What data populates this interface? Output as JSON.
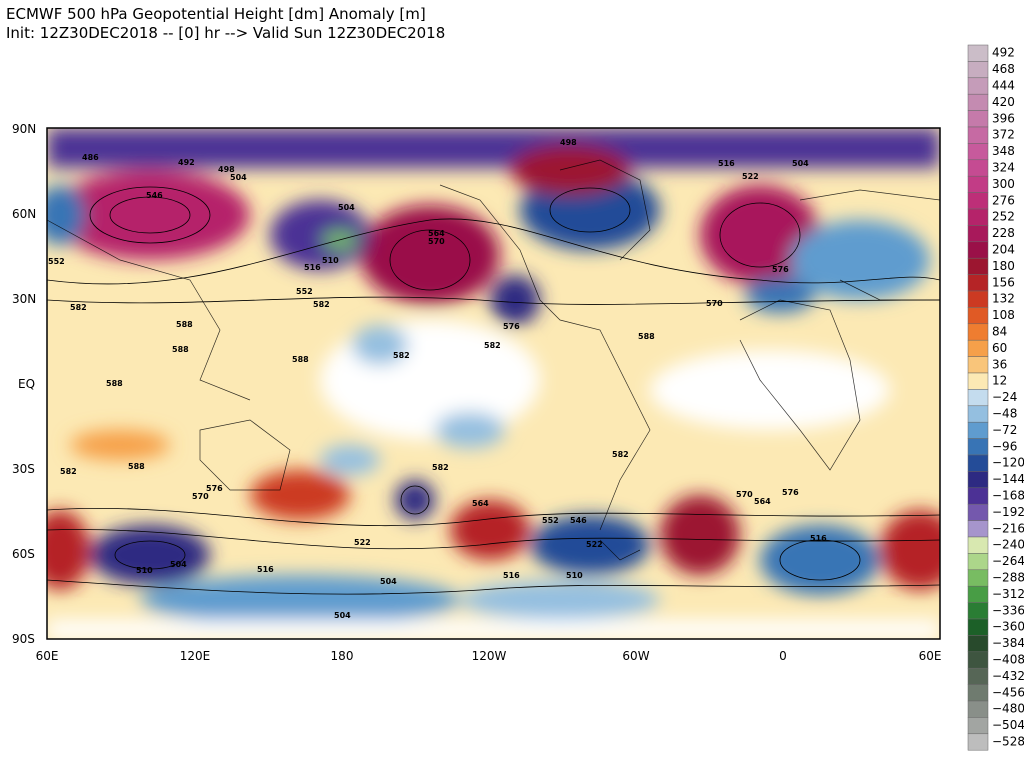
{
  "header": {
    "title": "ECMWF 500 hPa Geopotential Height [dm] Anomaly [m]",
    "subtitle": "Init: 12Z30DEC2018 -- [0] hr --> Valid Sun 12Z30DEC2018"
  },
  "map": {
    "lat_labels": [
      "90N",
      "60N",
      "30N",
      "EQ",
      "30S",
      "60S",
      "90S"
    ],
    "lon_labels": [
      "60E",
      "120E",
      "180",
      "120W",
      "60W",
      "0",
      "60E"
    ],
    "contour_labels": [
      "486",
      "492",
      "498",
      "504",
      "546",
      "504",
      "510",
      "516",
      "552",
      "582",
      "564",
      "570",
      "576",
      "498",
      "516",
      "504",
      "522",
      "570",
      "576",
      "582",
      "588",
      "588",
      "588",
      "588",
      "582",
      "582",
      "588",
      "588",
      "582",
      "570",
      "576",
      "582",
      "564",
      "552",
      "522",
      "504",
      "510",
      "516",
      "504",
      "510",
      "516",
      "504",
      "582",
      "576",
      "570",
      "564",
      "546",
      "522",
      "552",
      "516"
    ]
  },
  "colorbar": [
    {
      "label": "492",
      "color": "#cbbdc8"
    },
    {
      "label": "468",
      "color": "#c7adc0"
    },
    {
      "label": "444",
      "color": "#c59cb9"
    },
    {
      "label": "420",
      "color": "#c48bb1"
    },
    {
      "label": "396",
      "color": "#c57aaa"
    },
    {
      "label": "372",
      "color": "#c66aa3"
    },
    {
      "label": "348",
      "color": "#c75a9c"
    },
    {
      "label": "324",
      "color": "#c54b92"
    },
    {
      "label": "300",
      "color": "#c23c86"
    },
    {
      "label": "276",
      "color": "#bd2f78"
    },
    {
      "label": "252",
      "color": "#b5236a"
    },
    {
      "label": "228",
      "color": "#a8195b"
    },
    {
      "label": "204",
      "color": "#9a1048"
    },
    {
      "label": "180",
      "color": "#9c1630"
    },
    {
      "label": "156",
      "color": "#b52426"
    },
    {
      "label": "132",
      "color": "#cc3a22"
    },
    {
      "label": "108",
      "color": "#e05a25"
    },
    {
      "label": "84",
      "color": "#ef7d30"
    },
    {
      "label": "60",
      "color": "#f6a04a"
    },
    {
      "label": "36",
      "color": "#f9c57a"
    },
    {
      "label": "12",
      "color": "#fce9b4"
    },
    {
      "label": "−24",
      "color": "#c4dcee"
    },
    {
      "label": "−48",
      "color": "#94bfe0"
    },
    {
      "label": "−72",
      "color": "#5f9ccf"
    },
    {
      "label": "−96",
      "color": "#3874b5"
    },
    {
      "label": "−120",
      "color": "#244c98"
    },
    {
      "label": "−144",
      "color": "#2d2a82"
    },
    {
      "label": "−168",
      "color": "#4c3195"
    },
    {
      "label": "−192",
      "color": "#7458ad"
    },
    {
      "label": "−216",
      "color": "#a695cc"
    },
    {
      "label": "−240",
      "color": "#d8e8b0"
    },
    {
      "label": "−264",
      "color": "#acd68a"
    },
    {
      "label": "−288",
      "color": "#78bc62"
    },
    {
      "label": "−312",
      "color": "#489d45"
    },
    {
      "label": "−336",
      "color": "#2a7d34"
    },
    {
      "label": "−360",
      "color": "#1c6028"
    },
    {
      "label": "−384",
      "color": "#284a2c"
    },
    {
      "label": "−408",
      "color": "#3e5540"
    },
    {
      "label": "−432",
      "color": "#566656"
    },
    {
      "label": "−456",
      "color": "#6f7b6f"
    },
    {
      "label": "−480",
      "color": "#898f89"
    },
    {
      "label": "−504",
      "color": "#a2a5a2"
    },
    {
      "label": "−528",
      "color": "#bdbdbd"
    }
  ]
}
